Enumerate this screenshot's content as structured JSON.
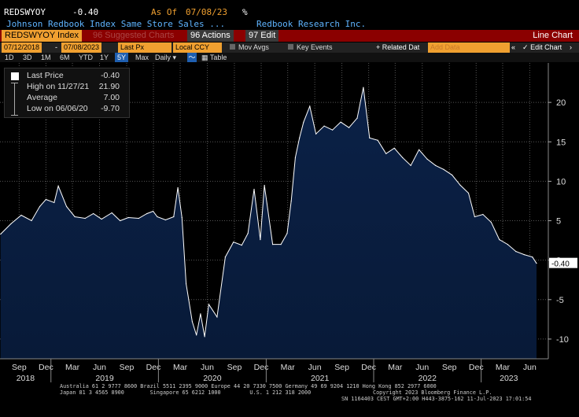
{
  "header": {
    "ticker": "REDSWYOY",
    "last_value": "-0.40",
    "as_of_label": "As Of",
    "as_of_date": "07/08/23",
    "pct_symbol": "%",
    "description": "Johnson Redbook Index Same Store Sales ...",
    "source": "Redbook Research Inc."
  },
  "toolbar": {
    "security": "REDSWYOY Index",
    "suggested": "96 Suggested Charts",
    "actions": "96 Actions",
    "edit": "97 Edit",
    "chart_type": "Line Chart"
  },
  "controls": {
    "start_date": "07/12/2018",
    "end_date": "07/08/2023",
    "field": "Last Px",
    "currency": "Local CCY",
    "mov_avgs": "Mov Avgs",
    "key_events": "Key Events",
    "related": "+ Related Dat",
    "add_data": "Add Data",
    "edit_chart": "Edit Chart"
  },
  "ranges": {
    "items": [
      "1D",
      "3D",
      "1M",
      "6M",
      "YTD",
      "1Y",
      "5Y",
      "Max"
    ],
    "selected": "5Y",
    "frequency": "Daily",
    "table": "Table"
  },
  "legend": {
    "last_label": "Last Price",
    "last_value": "-0.40",
    "high_label": "High on 11/27/21",
    "high_value": "21.90",
    "avg_label": "Average",
    "avg_value": "7.00",
    "low_label": "Low on 06/06/20",
    "low_value": "-9.70"
  },
  "footer": {
    "line1": "Australia 61 2 9777 8600 Brazil 5511 2395 9000 Europe 44 20 7330 7500 Germany 49 69 9204 1210 Hong Kong 852 2977 6000",
    "line2a": "Japan 81 3 4565 8900        Singapore 65 6212 1000         U.S. 1 212 318 2000",
    "line2b": "Copyright 2023 Bloomberg Finance L.P.",
    "line3": "SN 1164403 CEST GMT+2:00 H443-3875-162 11-Jul-2023 17:01:54"
  },
  "colors": {
    "line": "#ffffff",
    "fill": "#0b2147",
    "fill_bottom": "#081a38",
    "grid": "#555555",
    "last_label_bg": "#ffffff"
  },
  "chart_data": {
    "type": "area",
    "title": "",
    "xlabel": "",
    "ylabel": "",
    "x_start": "2018-07-12",
    "x_end": "2023-07-08",
    "ylim": [
      -12.5,
      25
    ],
    "yticks": [
      -10,
      -5,
      0,
      5,
      10,
      15,
      20
    ],
    "last_value_label": "-0.40",
    "x_month_ticks": [
      "Sep",
      "Dec",
      "Mar",
      "Jun",
      "Sep",
      "Dec",
      "Mar",
      "Jun",
      "Sep",
      "Dec",
      "Mar",
      "Jun",
      "Sep",
      "Dec",
      "Mar",
      "Jun",
      "Sep",
      "Dec",
      "Mar",
      "Jun"
    ],
    "x_year_labels": [
      "2018",
      "2019",
      "2020",
      "2021",
      "2022",
      "2023"
    ],
    "series": [
      {
        "points": [
          [
            "2018-07-14",
            3.3
          ],
          [
            "2018-08-18",
            4.6
          ],
          [
            "2018-09-22",
            5.7
          ],
          [
            "2018-10-27",
            5.0
          ],
          [
            "2018-11-24",
            6.8
          ],
          [
            "2018-12-15",
            7.7
          ],
          [
            "2019-01-12",
            7.3
          ],
          [
            "2019-01-26",
            9.4
          ],
          [
            "2019-02-23",
            6.8
          ],
          [
            "2019-03-23",
            5.5
          ],
          [
            "2019-04-27",
            5.3
          ],
          [
            "2019-05-25",
            5.9
          ],
          [
            "2019-06-22",
            5.2
          ],
          [
            "2019-07-27",
            6.0
          ],
          [
            "2019-08-24",
            5.0
          ],
          [
            "2019-09-21",
            5.4
          ],
          [
            "2019-10-26",
            5.3
          ],
          [
            "2019-11-23",
            5.9
          ],
          [
            "2019-12-14",
            6.2
          ],
          [
            "2019-12-28",
            5.5
          ],
          [
            "2020-01-25",
            5.1
          ],
          [
            "2020-02-22",
            5.5
          ],
          [
            "2020-03-07",
            9.2
          ],
          [
            "2020-03-21",
            5.4
          ],
          [
            "2020-04-04",
            -3.0
          ],
          [
            "2020-04-25",
            -7.8
          ],
          [
            "2020-05-09",
            -9.5
          ],
          [
            "2020-05-23",
            -6.8
          ],
          [
            "2020-06-06",
            -9.7
          ],
          [
            "2020-06-20",
            -5.6
          ],
          [
            "2020-07-18",
            -7.2
          ],
          [
            "2020-08-15",
            0.4
          ],
          [
            "2020-09-12",
            2.3
          ],
          [
            "2020-10-10",
            1.9
          ],
          [
            "2020-10-31",
            3.4
          ],
          [
            "2020-11-21",
            9.0
          ],
          [
            "2020-12-12",
            2.6
          ],
          [
            "2020-12-26",
            9.5
          ],
          [
            "2021-01-23",
            2.0
          ],
          [
            "2021-02-20",
            2.0
          ],
          [
            "2021-03-13",
            3.4
          ],
          [
            "2021-03-27",
            7.5
          ],
          [
            "2021-04-10",
            13.0
          ],
          [
            "2021-04-24",
            15.5
          ],
          [
            "2021-05-08",
            17.5
          ],
          [
            "2021-05-29",
            19.5
          ],
          [
            "2021-06-19",
            16.0
          ],
          [
            "2021-07-17",
            17.0
          ],
          [
            "2021-08-14",
            16.5
          ],
          [
            "2021-09-11",
            17.5
          ],
          [
            "2021-10-09",
            16.8
          ],
          [
            "2021-11-06",
            18.0
          ],
          [
            "2021-11-27",
            21.9
          ],
          [
            "2021-12-18",
            15.5
          ],
          [
            "2022-01-15",
            15.2
          ],
          [
            "2022-02-12",
            13.5
          ],
          [
            "2022-03-12",
            14.2
          ],
          [
            "2022-04-09",
            13.0
          ],
          [
            "2022-05-07",
            12.0
          ],
          [
            "2022-06-04",
            14.0
          ],
          [
            "2022-07-02",
            12.8
          ],
          [
            "2022-07-30",
            12.0
          ],
          [
            "2022-08-27",
            11.5
          ],
          [
            "2022-09-24",
            10.8
          ],
          [
            "2022-10-22",
            9.5
          ],
          [
            "2022-11-19",
            8.5
          ],
          [
            "2022-12-10",
            5.5
          ],
          [
            "2023-01-07",
            5.8
          ],
          [
            "2023-02-04",
            4.8
          ],
          [
            "2023-03-04",
            2.6
          ],
          [
            "2023-04-01",
            2.0
          ],
          [
            "2023-04-29",
            1.1
          ],
          [
            "2023-05-27",
            0.7
          ],
          [
            "2023-06-24",
            0.4
          ],
          [
            "2023-07-08",
            -0.4
          ]
        ]
      }
    ]
  }
}
